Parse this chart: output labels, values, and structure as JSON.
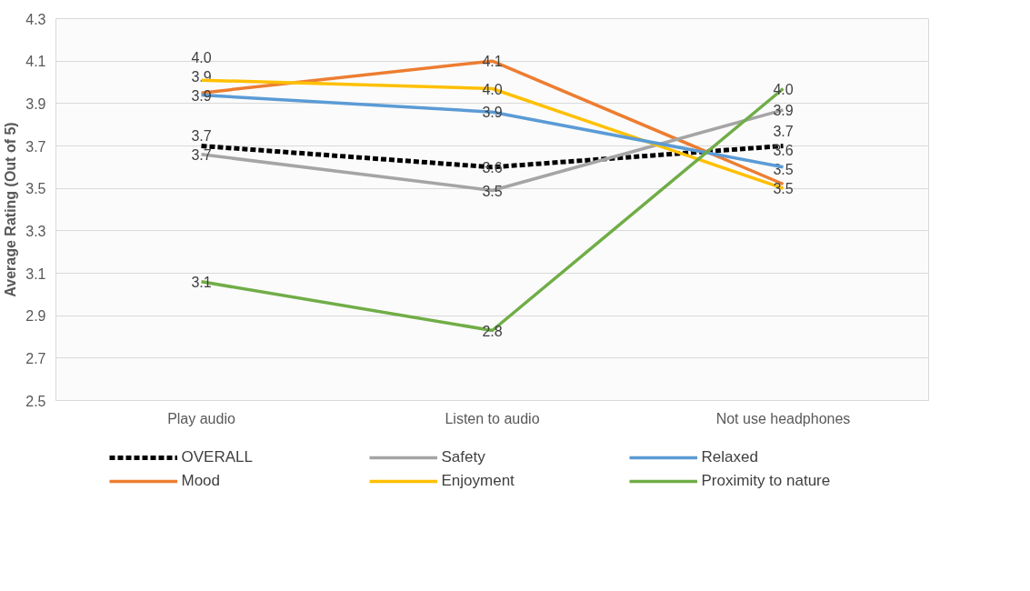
{
  "chart_data": {
    "type": "line",
    "ylabel": "Average Rating (Out of 5)",
    "categories": [
      "Play audio",
      "Listen to audio",
      "Not use headphones"
    ],
    "ylim": [
      2.5,
      4.3
    ],
    "yticks": [
      2.5,
      2.7,
      2.9,
      3.1,
      3.3,
      3.5,
      3.7,
      3.9,
      4.1,
      4.3
    ],
    "grid": "y",
    "legend": "bottom",
    "marker": "none",
    "series": [
      {
        "name": "OVERALL",
        "color": "#000000",
        "line_style": "dashed",
        "values": [
          3.7,
          3.6,
          3.7
        ],
        "value_labels": [
          "3.7",
          "3.6",
          "3.7"
        ]
      },
      {
        "name": "Mood",
        "color": "#ed7d31",
        "values": [
          3.95,
          4.1,
          3.52
        ],
        "value_labels": [
          "3.9",
          "4.1",
          "3.5"
        ]
      },
      {
        "name": "Safety",
        "color": "#a5a5a5",
        "values": [
          3.66,
          3.49,
          3.87
        ],
        "value_labels": [
          "3.7",
          "3.5",
          "3.9"
        ]
      },
      {
        "name": "Enjoyment",
        "color": "#ffc000",
        "values": [
          4.01,
          3.97,
          3.5
        ],
        "value_labels": [
          "4.0",
          "4.0",
          "3.5"
        ]
      },
      {
        "name": "Relaxed",
        "color": "#5b9bd5",
        "values": [
          3.94,
          3.86,
          3.6
        ],
        "value_labels": [
          "3.9",
          "3.9",
          "3.6"
        ]
      },
      {
        "name": "Proximity to nature",
        "color": "#70ad47",
        "values": [
          3.06,
          2.83,
          3.97
        ],
        "value_labels": [
          "3.1",
          "2.8",
          "4.0"
        ]
      }
    ]
  }
}
